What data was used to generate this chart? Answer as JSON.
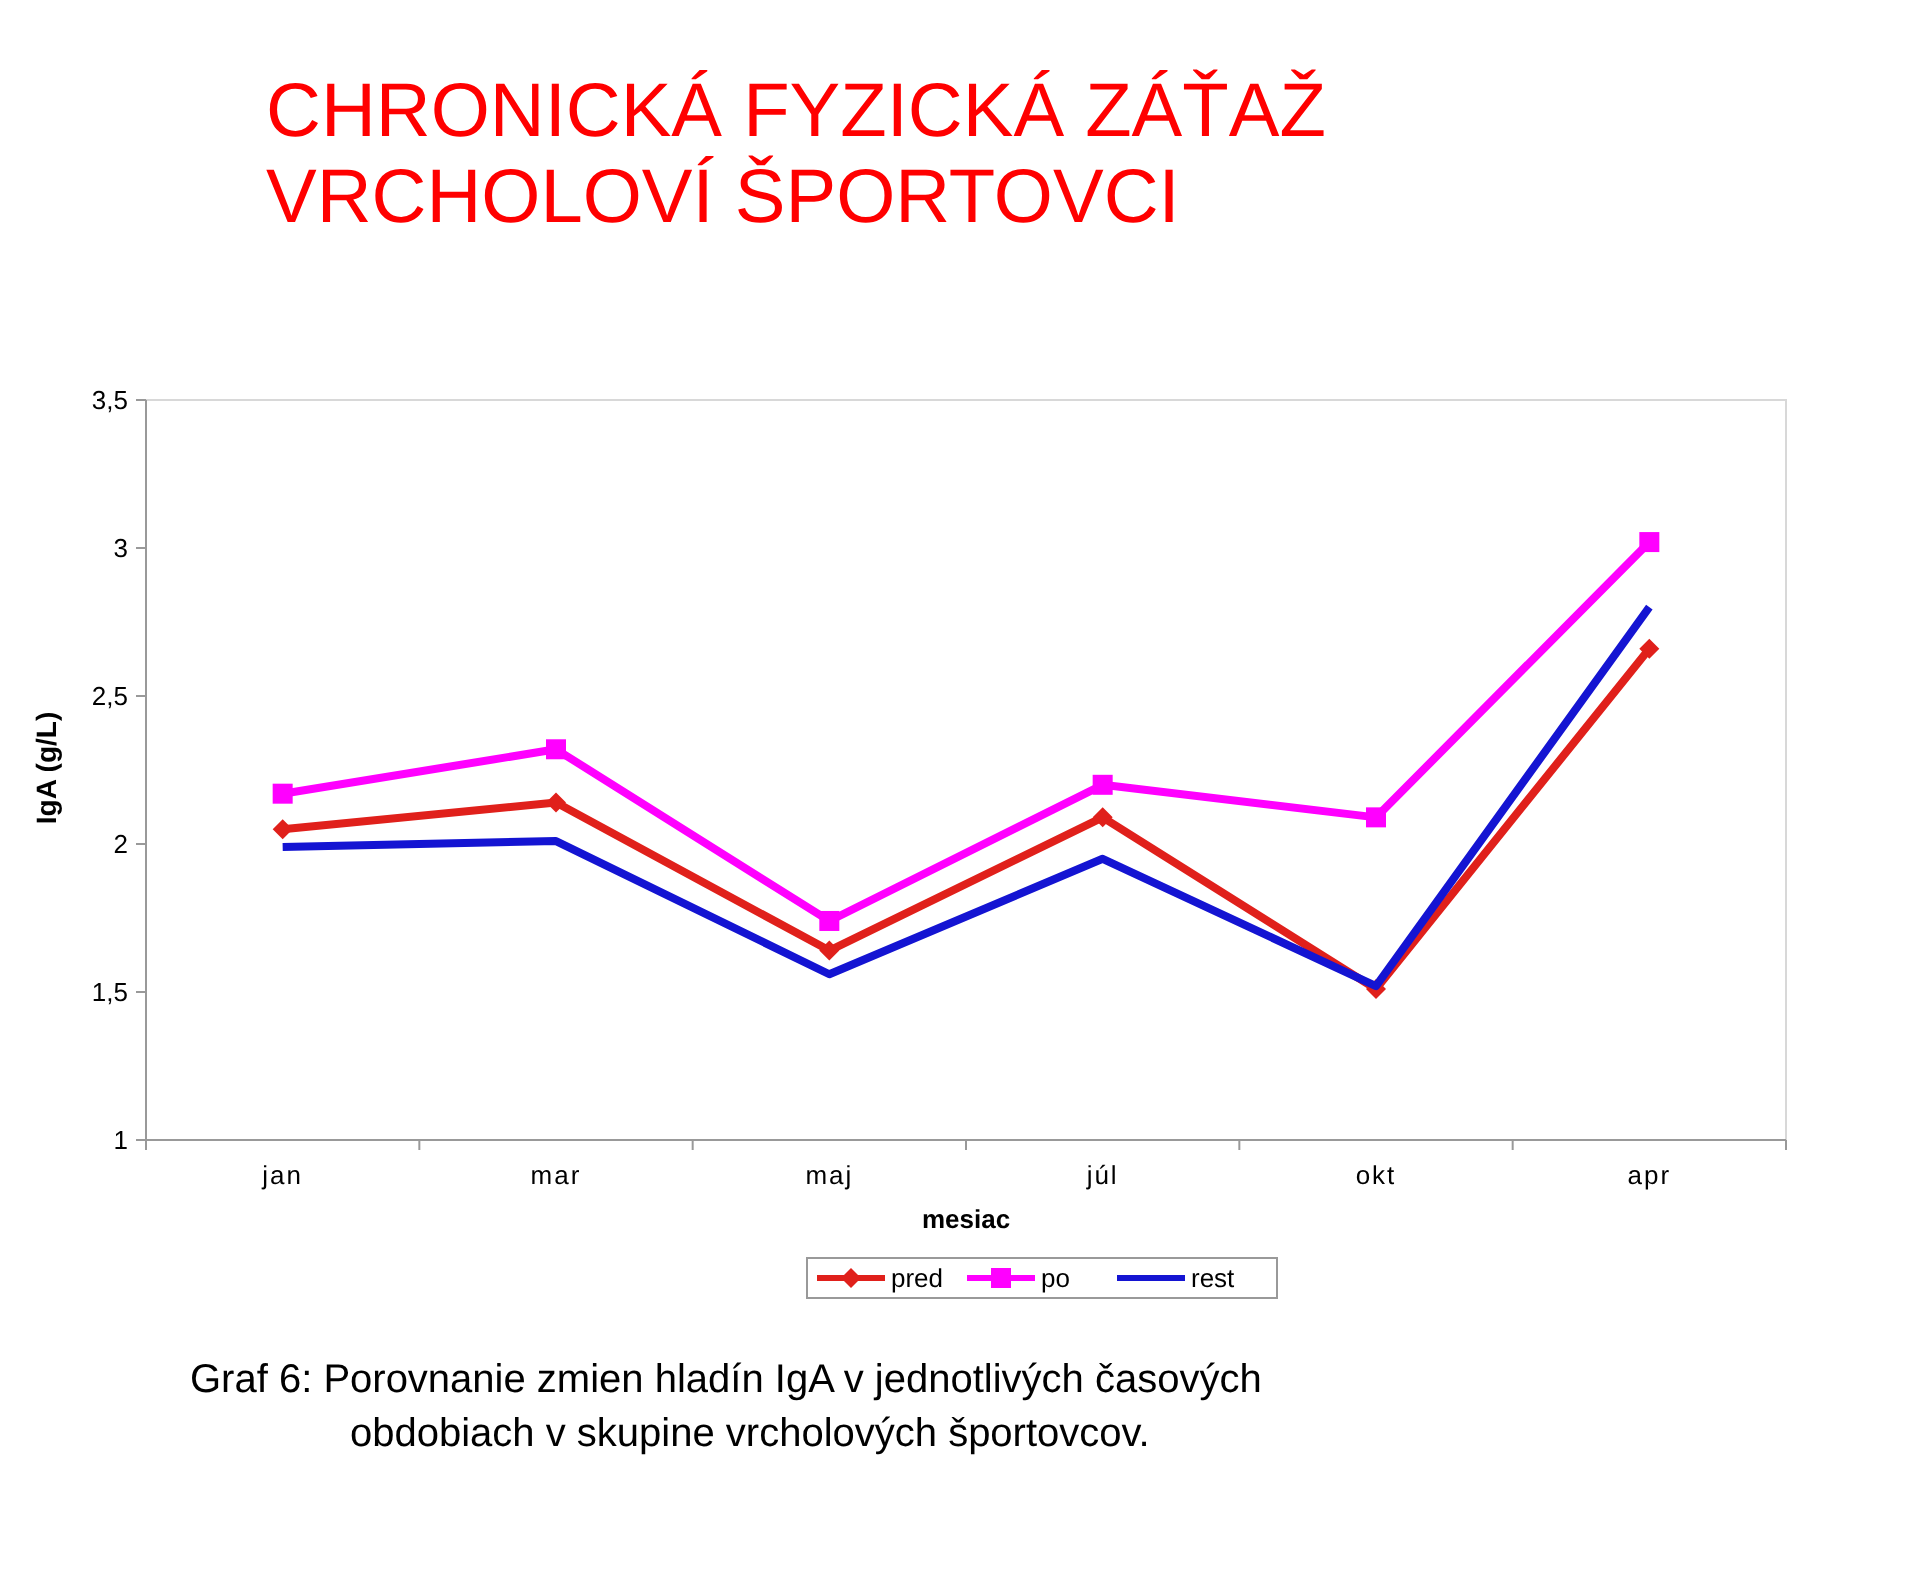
{
  "chart_data": {
    "type": "line",
    "title": "CHRONICKÁ FYZICKÁ ZÁŤAŽ\nVRCHOLOVÍ ŠPORTOVCI",
    "xlabel": "mesiac",
    "ylabel": "IgA (g/L)",
    "categories": [
      "jan",
      "mar",
      "maj",
      "júl",
      "okt",
      "apr"
    ],
    "series": [
      {
        "name": "pred",
        "color": "#e0201b",
        "marker": "diamond",
        "values": [
          2.05,
          2.14,
          1.64,
          2.09,
          1.51,
          2.66
        ]
      },
      {
        "name": "po",
        "color": "#ff00ff",
        "marker": "square",
        "values": [
          2.17,
          2.32,
          1.74,
          2.2,
          2.09,
          3.02
        ]
      },
      {
        "name": "rest",
        "color": "#1414d2",
        "marker": "none",
        "values": [
          1.99,
          2.01,
          1.56,
          1.95,
          1.52,
          2.8
        ]
      }
    ],
    "ylim": [
      1,
      3.5
    ],
    "yticks": [
      {
        "value": 1,
        "label": "1"
      },
      {
        "value": 1.5,
        "label": "1,5"
      },
      {
        "value": 2,
        "label": "2"
      },
      {
        "value": 2.5,
        "label": "2,5"
      },
      {
        "value": 3,
        "label": "3"
      },
      {
        "value": 3.5,
        "label": "3,5"
      }
    ],
    "grid": false,
    "legend": "bottom",
    "annotations": [
      "Graf  6:  Porovnanie zmien  hladín IgA v jednotlivých časových",
      "obdobiach v  skupine vrcholových športovcov."
    ]
  }
}
